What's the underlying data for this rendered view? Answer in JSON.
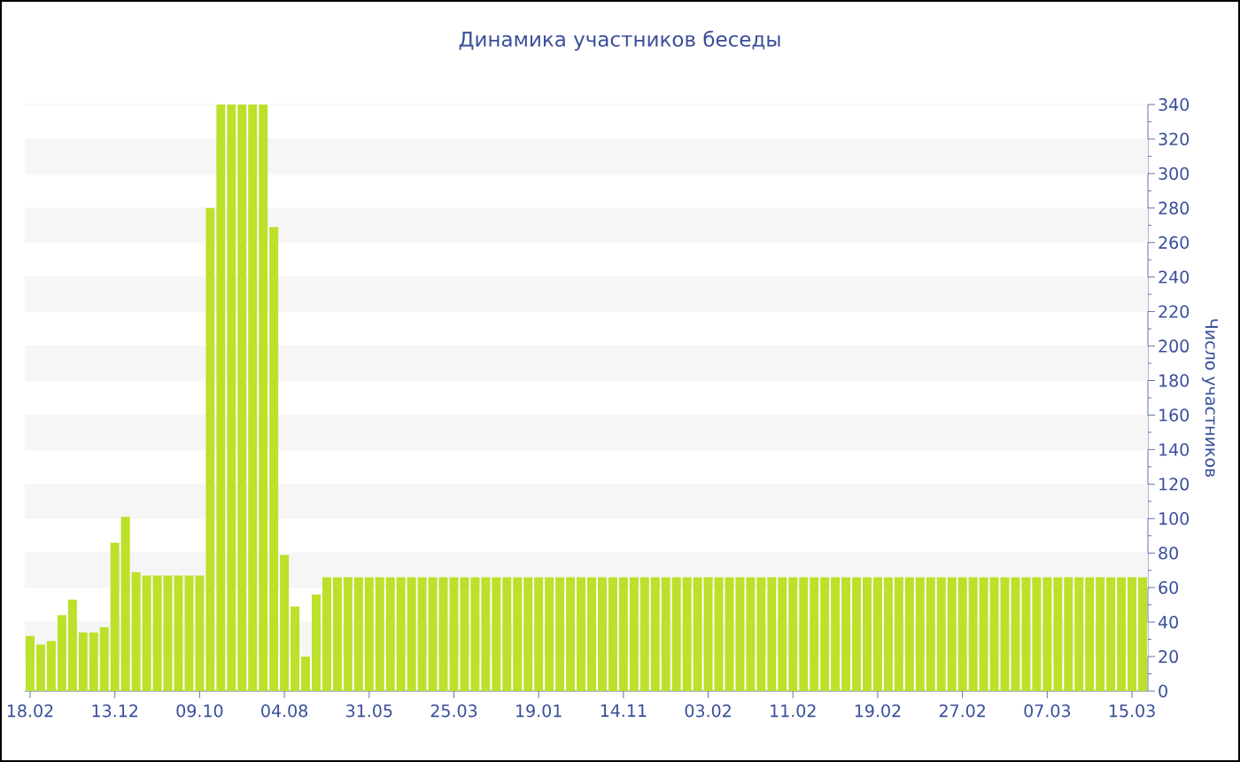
{
  "chart_data": {
    "type": "bar",
    "title": "Динамика участников беседы",
    "ylabel": "Число участников",
    "color": "#bde02a",
    "grid": "y",
    "categories": [
      "18.02",
      null,
      null,
      null,
      null,
      null,
      null,
      null,
      "13.12",
      null,
      null,
      null,
      null,
      null,
      null,
      null,
      "09.10",
      null,
      null,
      null,
      null,
      null,
      null,
      null,
      "04.08",
      null,
      null,
      null,
      null,
      null,
      null,
      null,
      "31.05",
      null,
      null,
      null,
      null,
      null,
      null,
      null,
      "25.03",
      null,
      null,
      null,
      null,
      null,
      null,
      null,
      "19.01",
      null,
      null,
      null,
      null,
      null,
      null,
      null,
      "14.11",
      null,
      null,
      null,
      null,
      null,
      null,
      null,
      "03.02",
      null,
      null,
      null,
      null,
      null,
      null,
      null,
      "11.02",
      null,
      null,
      null,
      null,
      null,
      null,
      null,
      "19.02",
      null,
      null,
      null,
      null,
      null,
      null,
      null,
      "27.02",
      null,
      null,
      null,
      null,
      null,
      null,
      null,
      "07.03",
      null,
      null,
      null,
      null,
      null,
      null,
      null,
      "15.03",
      null
    ],
    "values": [
      32,
      27,
      29,
      44,
      53,
      34,
      34,
      37,
      86,
      101,
      69,
      67,
      67,
      67,
      67,
      67,
      67,
      280,
      340,
      340,
      340,
      340,
      340,
      269,
      79,
      49,
      20,
      56,
      66,
      66,
      66,
      66,
      66,
      66,
      66,
      66,
      66,
      66,
      66,
      66,
      66,
      66,
      66,
      66,
      66,
      66,
      66,
      66,
      66,
      66,
      66,
      66,
      66,
      66,
      66,
      66,
      66,
      66,
      66,
      66,
      66,
      66,
      66,
      66,
      66,
      66,
      66,
      66,
      66,
      66,
      66,
      66,
      66,
      66,
      66,
      66,
      66,
      66,
      66,
      66,
      66,
      66,
      66,
      66,
      66,
      66,
      66,
      66,
      66,
      66,
      66,
      66,
      66,
      66,
      66,
      66,
      66,
      66,
      66,
      66,
      66,
      66,
      66,
      66,
      66,
      66
    ],
    "ylim": [
      0,
      340
    ],
    "yticks": [
      0,
      20,
      40,
      60,
      80,
      100,
      120,
      140,
      160,
      180,
      200,
      220,
      240,
      260,
      280,
      300,
      320,
      340
    ]
  }
}
